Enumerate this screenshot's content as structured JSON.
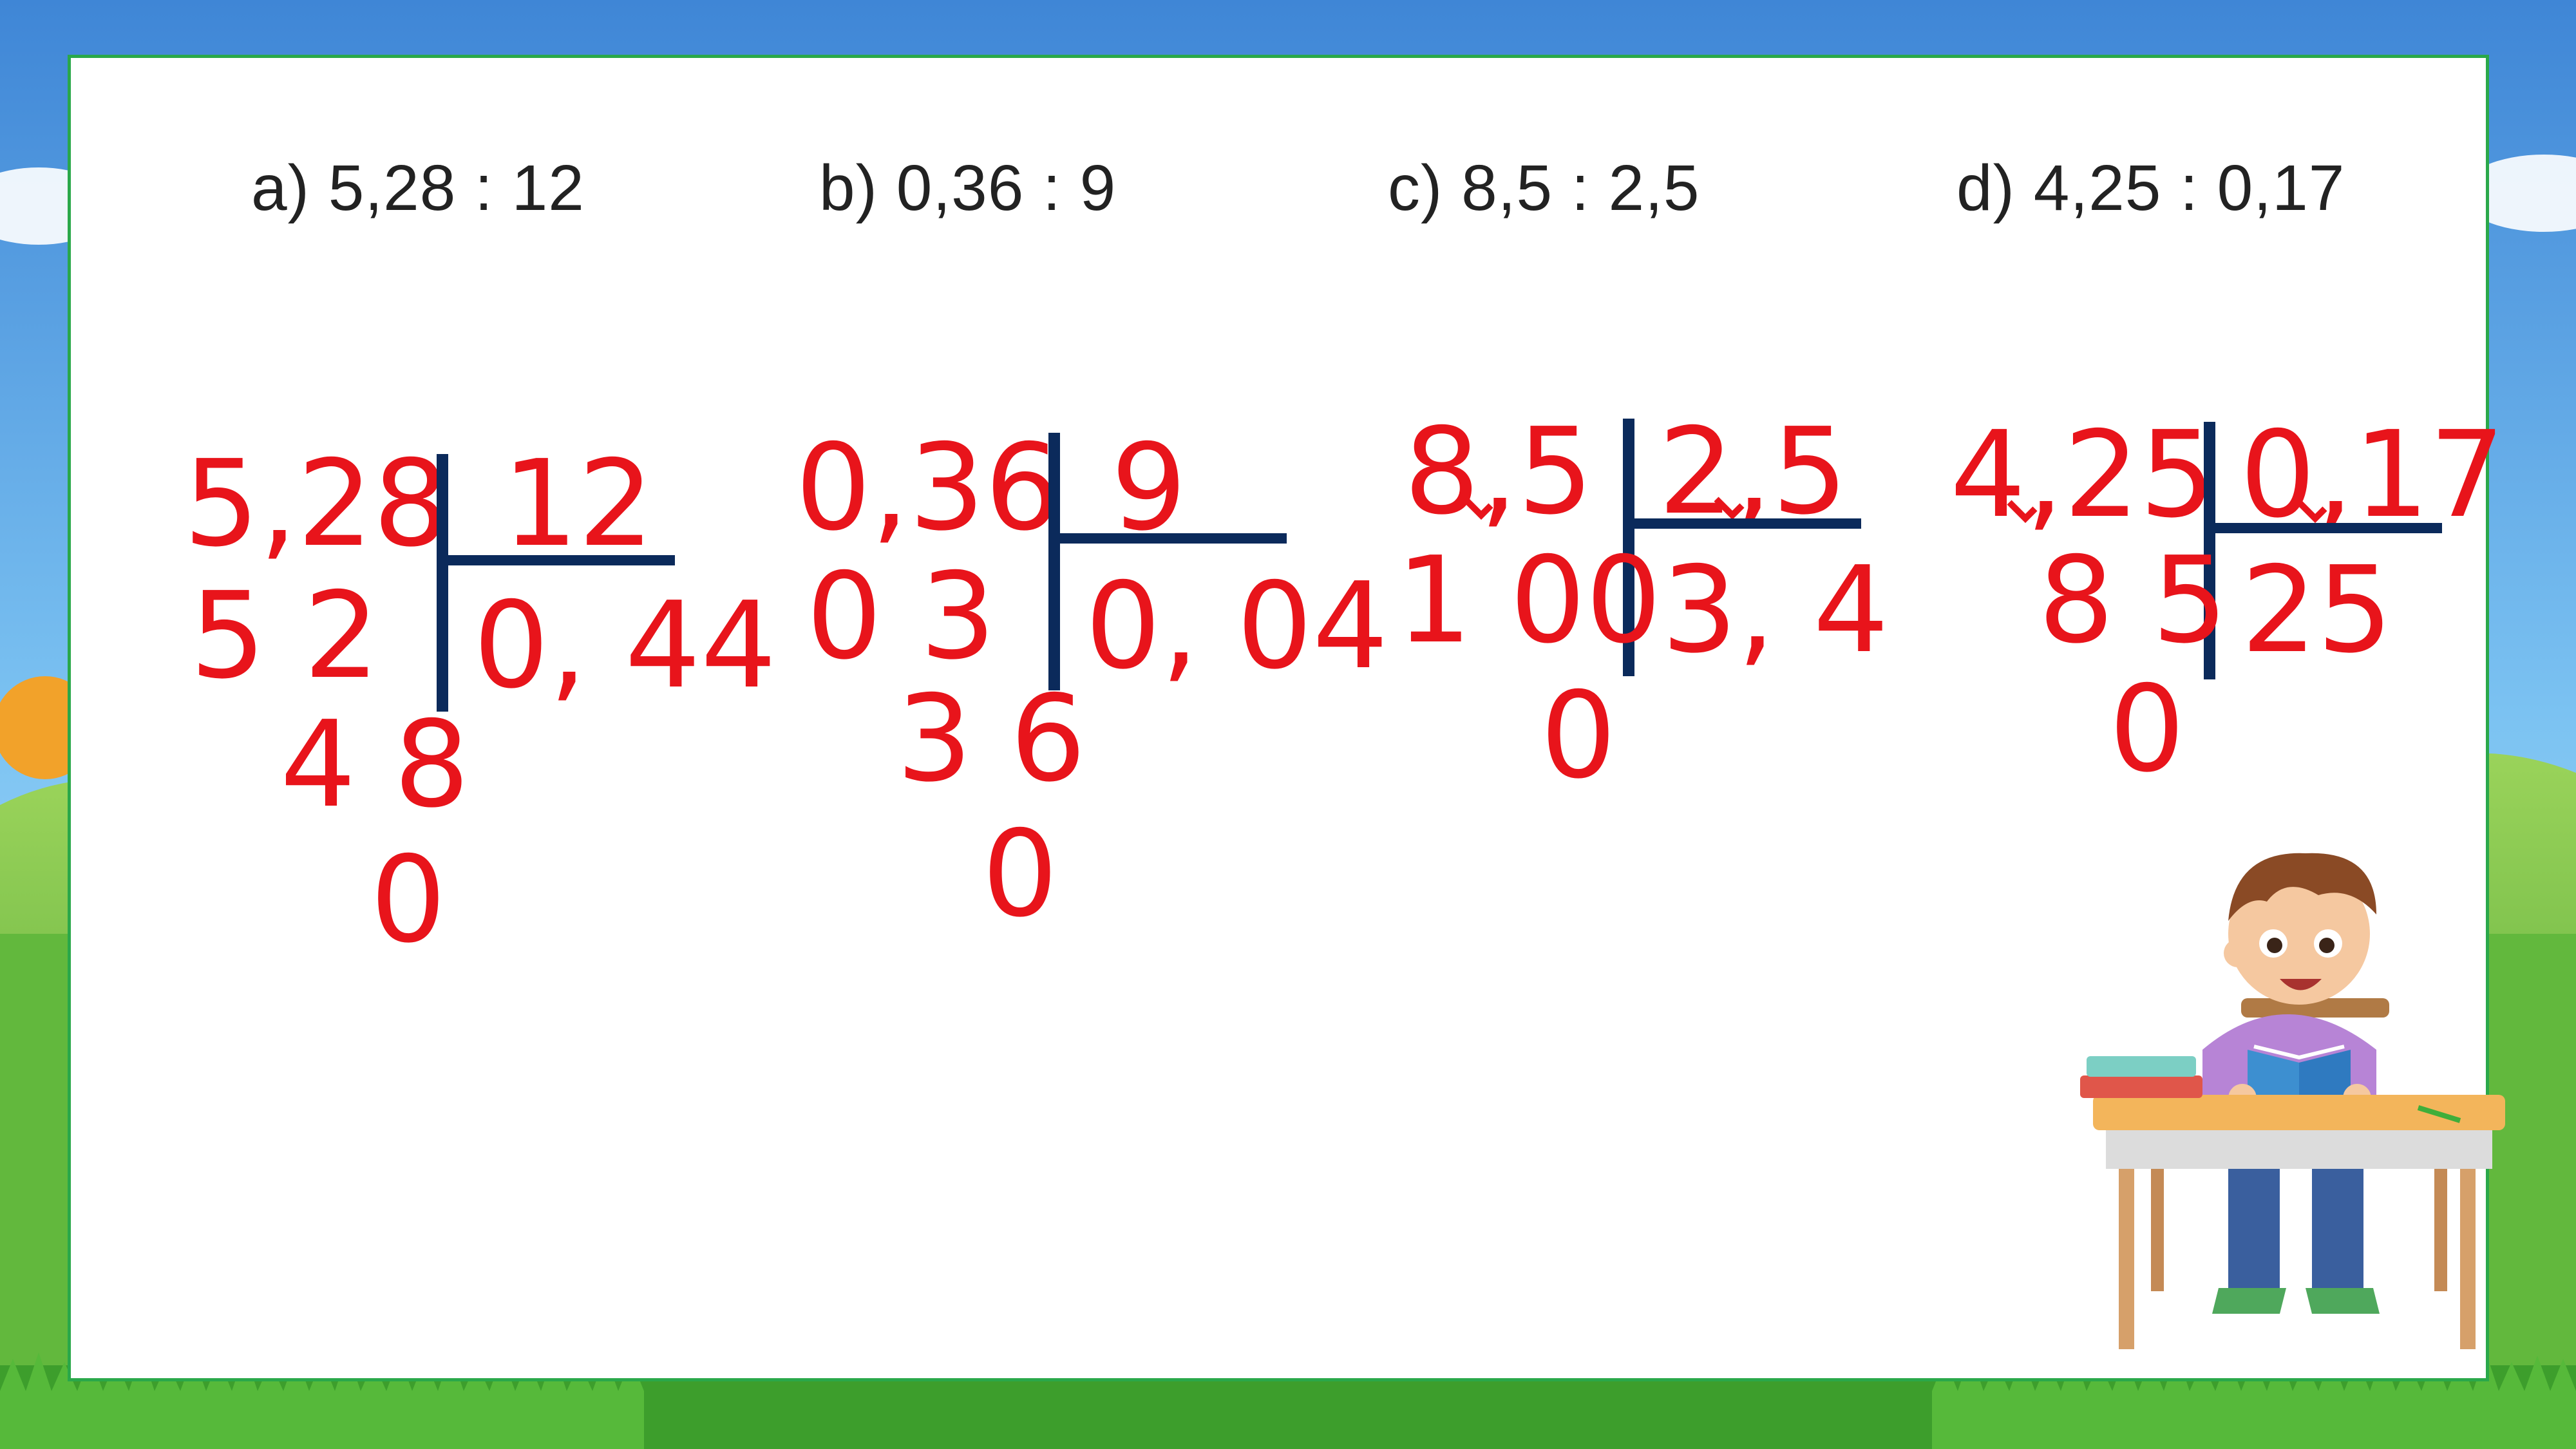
{
  "problems": [
    {
      "label": "a) 5,28 : 12"
    },
    {
      "label": "b) 0,36 : 9"
    },
    {
      "label": "c) 8,5 : 2,5"
    },
    {
      "label": "d) 4,25 : 0,17"
    }
  ],
  "division_a": {
    "dividend": "5,28",
    "divisor": "12",
    "step1": "5 2",
    "quotient": "0, 44",
    "step2": "4 8",
    "remainder": "0"
  },
  "division_b": {
    "dividend": "0,36",
    "divisor": "9",
    "step1": "0 3",
    "quotient": "0, 04",
    "step2": "3 6",
    "remainder": "0"
  },
  "division_c": {
    "dividend": "8,5",
    "divisor": "2,5",
    "step1": "1 00",
    "quotient": "3, 4",
    "remainder": "0"
  },
  "division_d": {
    "dividend": "4,25",
    "divisor": "0,17",
    "step1": "8 5",
    "quotient": "25",
    "remainder": "0"
  },
  "colors": {
    "ink_red": "#e8141b",
    "line_navy": "#0b2a5b",
    "frame_green": "#2aa84a",
    "sky_blue": "#4a8fd9",
    "grass_green": "#3fae3a"
  }
}
